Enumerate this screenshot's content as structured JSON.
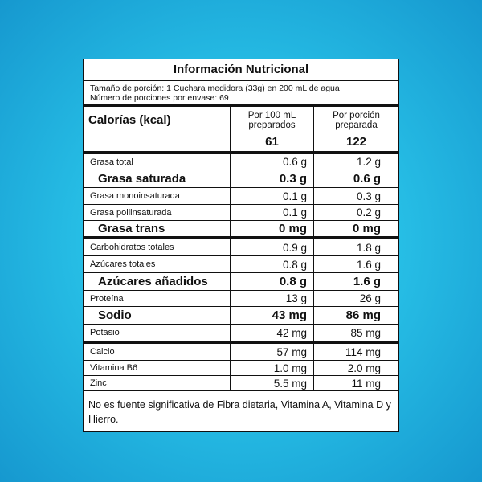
{
  "title": "Información Nutricional",
  "serving": {
    "size": "Tamaño de porción: 1 Cuchara medidora (33g) en 200 mL de agua",
    "servings": "Número de porciones por envase: 69"
  },
  "header": {
    "calories_label": "Calorías (kcal)",
    "col1": "Por 100 mL preparados",
    "col2": "Por porción preparada",
    "cal1": "61",
    "cal2": "122"
  },
  "rows": [
    {
      "name": "Grasa total",
      "per100": "0.6 g",
      "perServing": "1.2 g",
      "bold": false,
      "h": 19
    },
    {
      "name": "Grasa saturada",
      "per100": "0.3 g",
      "perServing": "0.6 g",
      "bold": true,
      "h": 21
    },
    {
      "name": "Grasa monoinsaturada",
      "per100": "0.1 g",
      "perServing": "0.3 g",
      "bold": false,
      "h": 20
    },
    {
      "name": "Grasa poliinsaturada",
      "per100": "0.1 g",
      "perServing": "0.2 g",
      "bold": false,
      "h": 19
    },
    {
      "name": "Grasa trans",
      "per100": "0 mg",
      "perServing": "0 mg",
      "bold": true,
      "thick": true,
      "h": 19
    },
    {
      "name": "Carbohidratos totales",
      "per100": "0.9 g",
      "perServing": "1.8 g",
      "bold": false,
      "h": 20
    },
    {
      "name": "Azúcares totales",
      "per100": "0.8 g",
      "perServing": "1.6 g",
      "bold": false,
      "h": 20
    },
    {
      "name": "Azúcares añadidos",
      "per100": "0.8 g",
      "perServing": "1.6 g",
      "bold": true,
      "h": 21
    },
    {
      "name": "Proteína",
      "per100": "13 g",
      "perServing": "26 g",
      "bold": false,
      "h": 19
    },
    {
      "name": "Sodio",
      "per100": "43 mg",
      "perServing": "86 mg",
      "bold": true,
      "h": 21
    },
    {
      "name": "Potasio",
      "per100": "42 mg",
      "perServing": "85 mg",
      "bold": false,
      "thick": true,
      "h": 20
    },
    {
      "name": "Calcio",
      "per100": "57 mg",
      "perServing": "114 mg",
      "bold": false,
      "h": 20
    },
    {
      "name": "Vitamina B6",
      "per100": "1.0 mg",
      "perServing": "2.0 mg",
      "bold": false,
      "h": 18
    },
    {
      "name": "Zinc",
      "per100": "5.5 mg",
      "perServing": "11 mg",
      "bold": false,
      "h": 18
    }
  ],
  "footer": "No es fuente significativa de Fibra dietaria, Vitamina A, Vitamina D y Hierro."
}
